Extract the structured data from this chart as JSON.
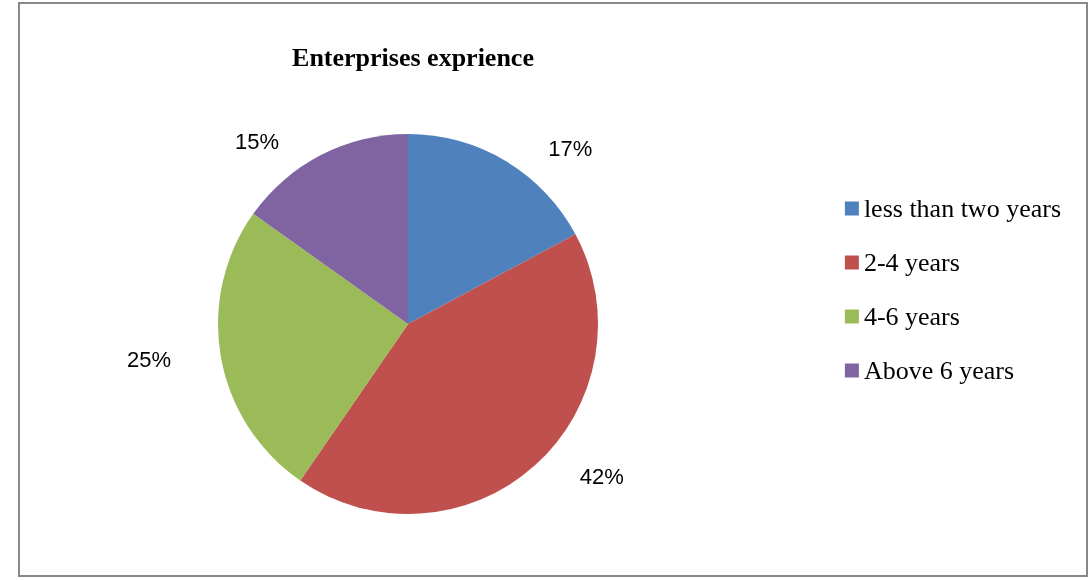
{
  "chart_data": {
    "type": "pie",
    "title": "Enterprises exprience",
    "categories": [
      "less than two years",
      "2-4 years",
      "4-6 years",
      "Above 6 years"
    ],
    "values": [
      17,
      42,
      25,
      15
    ],
    "value_labels": [
      "17%",
      "42%",
      "25%",
      "15%"
    ],
    "colors": [
      "#4f81bd",
      "#c0504d",
      "#9bbb59",
      "#8064a2"
    ],
    "legend": "right"
  }
}
